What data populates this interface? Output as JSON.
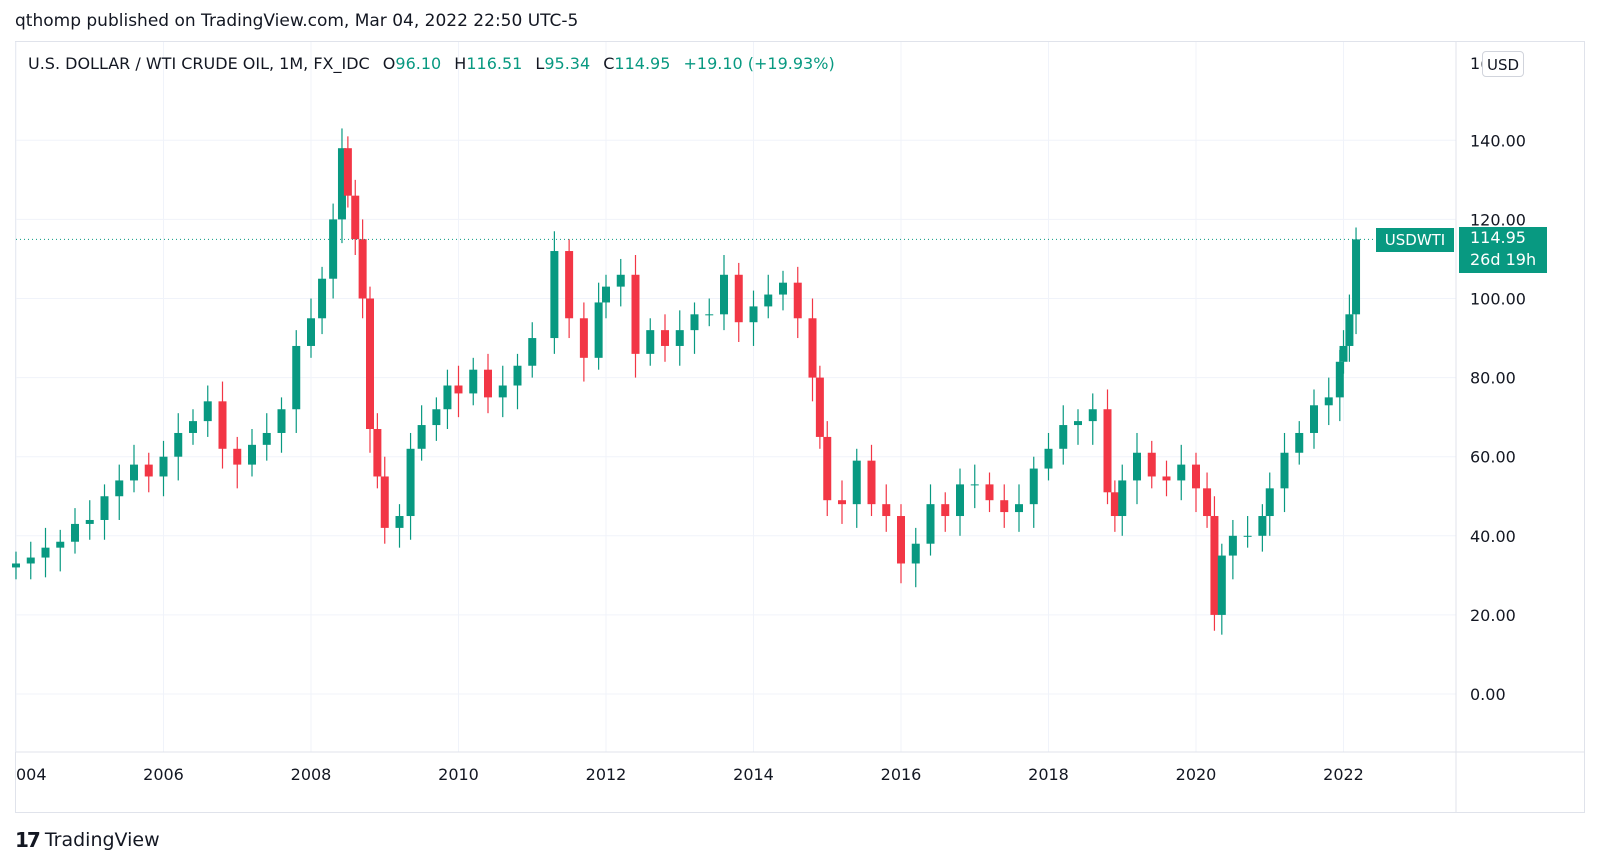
{
  "header": {
    "publisher": "qthomp published on TradingView.com, Mar 04, 2022 22:50 UTC-5"
  },
  "legend": {
    "symbol": "U.S. DOLLAR / WTI CRUDE OIL, 1M, FX_IDC",
    "o_label": "O",
    "o_value": "96.10",
    "h_label": "H",
    "h_value": "116.51",
    "l_label": "L",
    "l_value": "95.34",
    "c_label": "C",
    "c_value": "114.95",
    "change": "+19.10 (+19.93%)"
  },
  "scale": {
    "currency": "USD",
    "top_clipped": "1("
  },
  "last_price": {
    "symbol": "USDWTI",
    "price": "114.95",
    "countdown": "26d 19h"
  },
  "colors": {
    "up": "#089981",
    "down": "#f23645",
    "grid": "#f0f3fa",
    "text": "#131722"
  },
  "brand": {
    "name": "TradingView"
  },
  "chart_data": {
    "type": "candlestick",
    "title": "U.S. DOLLAR / WTI CRUDE OIL, 1M, FX_IDC",
    "interval": "1M",
    "ylim": [
      -15,
      163
    ],
    "xlim": [
      2004.0,
      2023.55
    ],
    "y_ticks": [
      "0.00",
      "20.00",
      "40.00",
      "60.00",
      "80.00",
      "100.00",
      "120.00",
      "140.00"
    ],
    "y_tick_values": [
      0,
      20,
      40,
      60,
      80,
      100,
      120,
      140
    ],
    "x_ticks": [
      "004",
      "2006",
      "2008",
      "2010",
      "2012",
      "2014",
      "2016",
      "2018",
      "2020",
      "2022"
    ],
    "x_tick_values": [
      2004,
      2006,
      2008,
      2010,
      2012,
      2014,
      2016,
      2018,
      2020,
      2022
    ],
    "last_price_line": 114.95,
    "monthly_closes": [
      [
        2004.0,
        33.0
      ],
      [
        2004.2,
        34.5
      ],
      [
        2004.4,
        37
      ],
      [
        2004.6,
        38.5
      ],
      [
        2004.8,
        43
      ],
      [
        2005.0,
        44
      ],
      [
        2005.2,
        50
      ],
      [
        2005.4,
        54
      ],
      [
        2005.6,
        58
      ],
      [
        2005.8,
        55
      ],
      [
        2006.0,
        60
      ],
      [
        2006.2,
        66
      ],
      [
        2006.4,
        69
      ],
      [
        2006.6,
        74
      ],
      [
        2006.8,
        62
      ],
      [
        2007.0,
        58
      ],
      [
        2007.2,
        63
      ],
      [
        2007.4,
        66
      ],
      [
        2007.6,
        72
      ],
      [
        2007.8,
        88
      ],
      [
        2008.0,
        95
      ],
      [
        2008.15,
        105
      ],
      [
        2008.3,
        120
      ],
      [
        2008.42,
        138
      ],
      [
        2008.5,
        126
      ],
      [
        2008.6,
        115
      ],
      [
        2008.7,
        100
      ],
      [
        2008.8,
        67
      ],
      [
        2008.9,
        55
      ],
      [
        2009.0,
        42
      ],
      [
        2009.2,
        45
      ],
      [
        2009.35,
        62
      ],
      [
        2009.5,
        68
      ],
      [
        2009.7,
        72
      ],
      [
        2009.85,
        78
      ],
      [
        2010.0,
        76
      ],
      [
        2010.2,
        82
      ],
      [
        2010.4,
        75
      ],
      [
        2010.6,
        78
      ],
      [
        2010.8,
        83
      ],
      [
        2011.0,
        90
      ],
      [
        2011.3,
        112
      ],
      [
        2011.5,
        95
      ],
      [
        2011.7,
        85
      ],
      [
        2011.9,
        99
      ],
      [
        2012.0,
        103
      ],
      [
        2012.2,
        106
      ],
      [
        2012.4,
        86
      ],
      [
        2012.6,
        92
      ],
      [
        2012.8,
        88
      ],
      [
        2013.0,
        92
      ],
      [
        2013.2,
        96
      ],
      [
        2013.4,
        96
      ],
      [
        2013.6,
        106
      ],
      [
        2013.8,
        94
      ],
      [
        2014.0,
        98
      ],
      [
        2014.2,
        101
      ],
      [
        2014.4,
        104
      ],
      [
        2014.6,
        95
      ],
      [
        2014.8,
        80
      ],
      [
        2014.9,
        65
      ],
      [
        2015.0,
        49
      ],
      [
        2015.2,
        48
      ],
      [
        2015.4,
        59
      ],
      [
        2015.6,
        48
      ],
      [
        2015.8,
        45
      ],
      [
        2016.0,
        33
      ],
      [
        2016.2,
        38
      ],
      [
        2016.4,
        48
      ],
      [
        2016.6,
        45
      ],
      [
        2016.8,
        53
      ],
      [
        2017.0,
        53
      ],
      [
        2017.2,
        49
      ],
      [
        2017.4,
        46
      ],
      [
        2017.6,
        48
      ],
      [
        2017.8,
        57
      ],
      [
        2018.0,
        62
      ],
      [
        2018.2,
        68
      ],
      [
        2018.4,
        69
      ],
      [
        2018.6,
        72
      ],
      [
        2018.8,
        51
      ],
      [
        2018.9,
        45
      ],
      [
        2019.0,
        54
      ],
      [
        2019.2,
        61
      ],
      [
        2019.4,
        55
      ],
      [
        2019.6,
        54
      ],
      [
        2019.8,
        58
      ],
      [
        2020.0,
        52
      ],
      [
        2020.15,
        45
      ],
      [
        2020.25,
        20
      ],
      [
        2020.35,
        35
      ],
      [
        2020.5,
        40
      ],
      [
        2020.7,
        40
      ],
      [
        2020.9,
        45
      ],
      [
        2021.0,
        52
      ],
      [
        2021.2,
        61
      ],
      [
        2021.4,
        66
      ],
      [
        2021.6,
        73
      ],
      [
        2021.8,
        75
      ],
      [
        2021.95,
        84
      ],
      [
        2022.0,
        88
      ],
      [
        2022.08,
        96
      ],
      [
        2022.17,
        114.95
      ]
    ]
  }
}
